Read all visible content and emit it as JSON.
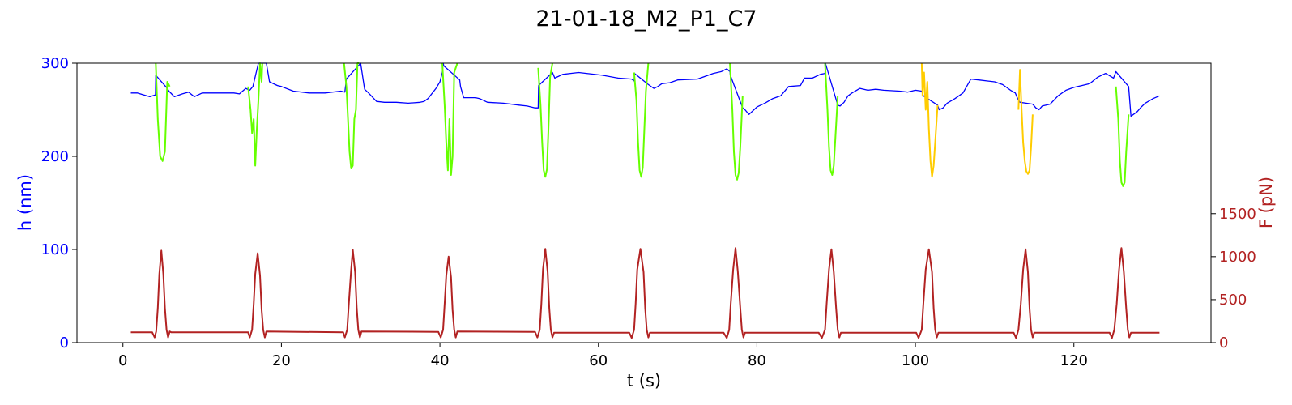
{
  "chart_data": {
    "type": "line",
    "title": "21-01-18_M2_P1_C7",
    "xlabel": "t (s)",
    "ylabel_left": "h (nm)",
    "ylabel_right": "F (pN)",
    "xlim": [
      -5.8,
      137.3
    ],
    "ylim_left": [
      0,
      300
    ],
    "ylim_right": [
      0,
      3250
    ],
    "xticks": [
      0,
      20,
      40,
      60,
      80,
      100,
      120
    ],
    "yticks_left": [
      0,
      100,
      200,
      300
    ],
    "yticks_right": [
      0,
      500,
      1000,
      1500
    ],
    "grid": false,
    "legend": "none",
    "colors": {
      "height": "#0000ff",
      "force": "#b22222",
      "indent_green": "#66ff00",
      "indent_gold": "#ffcc00",
      "left_axis": "#0000ff",
      "right_axis": "#b22222"
    },
    "series": [
      {
        "role": "height",
        "axis": "left",
        "color": "#0000ff",
        "x": [
          1.0,
          1.8,
          2.6,
          3.4,
          4.1,
          4.15,
          5.6,
          5.8,
          6.5,
          7.5,
          8.3,
          9.0,
          10.0,
          11.5,
          13.0,
          14.0,
          14.7,
          15.5,
          16.0,
          16.4,
          17.1,
          18.1,
          18.5,
          19.5,
          20.0,
          21.5,
          23.5,
          25.5,
          27.5,
          28.0,
          28.2,
          30.0,
          30.5,
          31.0,
          32.0,
          33.0,
          34.5,
          36.0,
          37.5,
          38.0,
          38.5,
          39.5,
          40.0,
          40.3,
          40.4,
          40.5,
          42.5,
          42.6,
          43.0,
          44.5,
          45.0,
          46.0,
          48.0,
          50.0,
          51.0,
          52.0,
          52.4,
          52.45,
          54.2,
          54.5,
          55.5,
          56.5,
          57.5,
          60.5,
          62.5,
          64.2,
          64.5,
          64.55,
          66.3,
          67.0,
          67.5,
          68.0,
          69.0,
          70.0,
          72.5,
          74.5,
          75.5,
          76.2,
          76.6,
          76.65,
          78.2,
          78.5,
          79.0,
          80.0,
          81.0,
          82.0,
          83.0,
          84.0,
          85.5,
          86.0,
          87.0,
          88.0,
          88.6,
          88.65,
          90.2,
          90.5,
          91.0,
          91.5,
          92.0,
          93.0,
          94.0,
          95.0,
          96.0,
          98.0,
          99.0,
          100.0,
          100.8,
          101.0,
          102.8,
          103.0,
          103.5,
          104.0,
          105.0,
          106.0,
          107.0,
          108.0,
          109.0,
          110.0,
          111.0,
          112.0,
          112.6,
          112.9,
          113.2,
          114.8,
          115.2,
          115.6,
          116.0,
          117.0,
          118.0,
          119.0,
          120.0,
          121.0,
          122.0,
          123.0,
          124.0,
          125.0,
          125.3,
          126.9,
          127.2,
          128.0,
          128.5,
          129.0,
          130.0,
          130.8
        ],
        "y": [
          268,
          268,
          266,
          264,
          266,
          287,
          273,
          270,
          264,
          267,
          269,
          264,
          268,
          268,
          268,
          268,
          267,
          273,
          271,
          275,
          300,
          300,
          280,
          276,
          275,
          270,
          268,
          268,
          270,
          269,
          283,
          300,
          272,
          268,
          259,
          258,
          258,
          257,
          258,
          259,
          262,
          273,
          280,
          290,
          300,
          297,
          282,
          275,
          263,
          263,
          262,
          258,
          257,
          255,
          254,
          252,
          252,
          276,
          290,
          284,
          288,
          289,
          290,
          287,
          284,
          283,
          281,
          289,
          277,
          273,
          275,
          278,
          279,
          282,
          283,
          289,
          291,
          294,
          291,
          287,
          252,
          250,
          245,
          253,
          257,
          262,
          265,
          275,
          276,
          284,
          284,
          288,
          289,
          300,
          255,
          254,
          258,
          265,
          268,
          273,
          271,
          272,
          271,
          270,
          269,
          271,
          270,
          265,
          255,
          250,
          252,
          257,
          262,
          268,
          283,
          282,
          281,
          280,
          277,
          271,
          268,
          262,
          258,
          256,
          252,
          250,
          254,
          256,
          265,
          271,
          274,
          276,
          278,
          285,
          289,
          284,
          291,
          275,
          243,
          248,
          253,
          257,
          262,
          265
        ]
      },
      {
        "role": "indentation",
        "axis": "left",
        "color": "#66ff00",
        "x": [
          4.15,
          4.4,
          4.7,
          5.0,
          5.3,
          5.6,
          5.9,
          15.8,
          16.1,
          16.3,
          16.5,
          16.7,
          16.9,
          17.1,
          17.3,
          17.5,
          17.6,
          27.9,
          28.2,
          28.4,
          28.6,
          28.8,
          29.0,
          29.2,
          29.4,
          29.6,
          29.8,
          40.3,
          40.6,
          40.8,
          41.0,
          41.2,
          41.4,
          41.6,
          41.8,
          42.0,
          42.2,
          52.4,
          52.7,
          52.9,
          53.1,
          53.3,
          53.5,
          53.7,
          53.9,
          54.2,
          64.5,
          64.8,
          65.0,
          65.2,
          65.4,
          65.6,
          65.8,
          66.0,
          66.3,
          76.6,
          76.9,
          77.1,
          77.3,
          77.5,
          77.7,
          77.9,
          78.2,
          88.6,
          88.9,
          89.1,
          89.3,
          89.5,
          89.7,
          89.9,
          90.2,
          125.3,
          125.6,
          125.8,
          126.0,
          126.2,
          126.4,
          126.6,
          126.9
        ],
        "y": [
          300,
          240,
          200,
          195,
          205,
          280,
          275,
          275,
          250,
          225,
          240,
          190,
          230,
          260,
          300,
          280,
          300,
          300,
          275,
          240,
          205,
          187,
          190,
          240,
          250,
          300,
          300,
          300,
          255,
          215,
          185,
          240,
          180,
          200,
          290,
          295,
          300,
          295,
          255,
          215,
          185,
          178,
          186,
          230,
          285,
          300,
          290,
          260,
          215,
          185,
          178,
          188,
          230,
          270,
          300,
          300,
          250,
          205,
          180,
          175,
          182,
          210,
          265,
          300,
          250,
          210,
          185,
          180,
          190,
          220,
          265,
          275,
          240,
          195,
          172,
          168,
          172,
          205,
          245
        ]
      },
      {
        "role": "indentation",
        "axis": "left",
        "color": "#ffcc00",
        "x": [
          100.8,
          100.9,
          101.1,
          101.3,
          101.5,
          101.7,
          101.9,
          102.1,
          102.3,
          102.5,
          102.8,
          113.0,
          113.2,
          113.4,
          113.6,
          113.8,
          114.0,
          114.2,
          114.4,
          114.6,
          114.8
        ],
        "y": [
          300,
          265,
          290,
          250,
          280,
          230,
          195,
          178,
          190,
          215,
          255,
          250,
          293,
          250,
          215,
          195,
          184,
          181,
          185,
          210,
          245
        ]
      },
      {
        "role": "force",
        "axis": "right",
        "color": "#b22222",
        "x": [
          1.0,
          3.7,
          4.0,
          4.2,
          4.4,
          4.6,
          4.85,
          5.1,
          5.3,
          5.5,
          5.7,
          5.9,
          6.1,
          15.8,
          16.0,
          16.3,
          16.5,
          16.7,
          17.0,
          17.3,
          17.5,
          17.7,
          17.9,
          18.1,
          27.8,
          28.0,
          28.3,
          28.5,
          28.8,
          29.0,
          29.3,
          29.5,
          29.7,
          29.9,
          30.1,
          39.8,
          40.1,
          40.4,
          40.6,
          40.8,
          41.1,
          41.4,
          41.6,
          41.8,
          42.0,
          42.2,
          52.0,
          52.3,
          52.6,
          52.8,
          53.0,
          53.3,
          53.6,
          53.8,
          54.0,
          54.2,
          54.4,
          63.9,
          64.2,
          64.5,
          64.7,
          64.9,
          65.3,
          65.7,
          65.9,
          66.1,
          66.3,
          66.5,
          75.8,
          76.2,
          76.5,
          76.7,
          77.0,
          77.3,
          77.6,
          77.9,
          78.1,
          78.3,
          78.5,
          87.8,
          88.2,
          88.6,
          88.8,
          89.1,
          89.4,
          89.7,
          90.0,
          90.2,
          90.4,
          90.6,
          100.1,
          100.4,
          100.8,
          101.0,
          101.3,
          101.7,
          102.1,
          102.3,
          102.5,
          102.7,
          102.9,
          112.4,
          112.7,
          113.0,
          113.3,
          113.6,
          113.9,
          114.2,
          114.4,
          114.6,
          114.8,
          115.0,
          124.5,
          124.8,
          125.1,
          125.4,
          125.7,
          126.0,
          126.3,
          126.6,
          126.8,
          127.0,
          127.2,
          130.8
        ],
        "y": [
          120,
          120,
          60,
          130,
          400,
          800,
          1070,
          800,
          400,
          150,
          60,
          130,
          120,
          120,
          60,
          150,
          450,
          800,
          1040,
          780,
          380,
          150,
          60,
          130,
          120,
          60,
          150,
          450,
          850,
          1080,
          820,
          400,
          150,
          60,
          130,
          125,
          60,
          150,
          450,
          780,
          1000,
          760,
          380,
          150,
          60,
          130,
          125,
          60,
          150,
          450,
          850,
          1090,
          820,
          400,
          150,
          60,
          115,
          115,
          55,
          150,
          450,
          850,
          1090,
          820,
          400,
          150,
          60,
          115,
          115,
          55,
          150,
          450,
          850,
          1100,
          820,
          400,
          150,
          60,
          115,
          115,
          55,
          150,
          450,
          850,
          1085,
          820,
          400,
          150,
          60,
          115,
          115,
          55,
          150,
          450,
          850,
          1085,
          820,
          400,
          150,
          60,
          115,
          115,
          55,
          150,
          450,
          850,
          1085,
          820,
          400,
          150,
          60,
          115,
          115,
          55,
          150,
          450,
          850,
          1100,
          820,
          400,
          150,
          60,
          115,
          115
        ]
      }
    ]
  }
}
